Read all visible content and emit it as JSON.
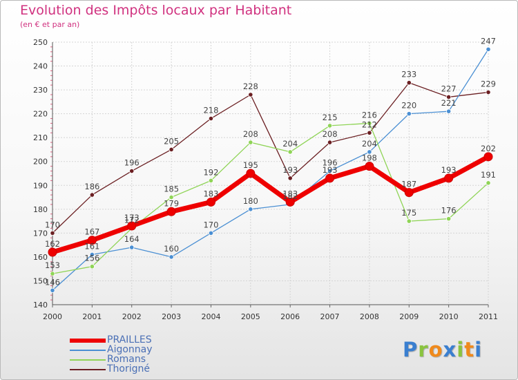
{
  "chart_data": {
    "type": "line",
    "title": "Evolution des Impôts locaux par Habitant",
    "subtitle": "(en € et par an)",
    "xlabel": "",
    "ylabel": "",
    "x": [
      "2000",
      "2001",
      "2002",
      "2003",
      "2004",
      "2005",
      "2006",
      "2007",
      "2008",
      "2009",
      "2010",
      "2011"
    ],
    "ylim": [
      140,
      250
    ],
    "yticks": [
      140,
      150,
      160,
      170,
      180,
      190,
      200,
      210,
      220,
      230,
      240,
      250
    ],
    "grid": true,
    "series": [
      {
        "name": "Thorigné",
        "color": "#6b1f22",
        "values": [
          170,
          186,
          196,
          205,
          218,
          228,
          193,
          208,
          212,
          233,
          227,
          229
        ]
      },
      {
        "name": "Aigonnay",
        "color": "#4a8fd3",
        "values": [
          146,
          161,
          164,
          160,
          170,
          180,
          182,
          196,
          204,
          220,
          221,
          247
        ]
      },
      {
        "name": "Romans",
        "color": "#8fd456",
        "values": [
          153,
          156,
          172,
          185,
          192,
          208,
          204,
          215,
          216,
          175,
          176,
          191
        ]
      },
      {
        "name": "PRAILLES",
        "color": "#ee0000",
        "values": [
          162,
          167,
          173,
          179,
          183,
          195,
          183,
          193,
          198,
          187,
          193,
          202
        ]
      }
    ],
    "legend": {
      "position": "bottom-left",
      "items": [
        {
          "name": "PRAILLES",
          "color": "#ee0000"
        },
        {
          "name": "Aigonnay",
          "color": "#4a8fd3"
        },
        {
          "name": "Romans",
          "color": "#8fd456"
        },
        {
          "name": "Thorigné",
          "color": "#6b1f22"
        }
      ]
    }
  },
  "branding": {
    "logo_letters": [
      {
        "char": "P",
        "color": "#3a7fd0"
      },
      {
        "char": "r",
        "color": "#8ac43f"
      },
      {
        "char": "o",
        "color": "#f08a1c"
      },
      {
        "char": "x",
        "color": "#3a7fd0"
      },
      {
        "char": "i",
        "color": "#8ac43f"
      },
      {
        "char": "t",
        "color": "#f08a1c"
      },
      {
        "char": "i",
        "color": "#3a7fd0"
      }
    ]
  }
}
